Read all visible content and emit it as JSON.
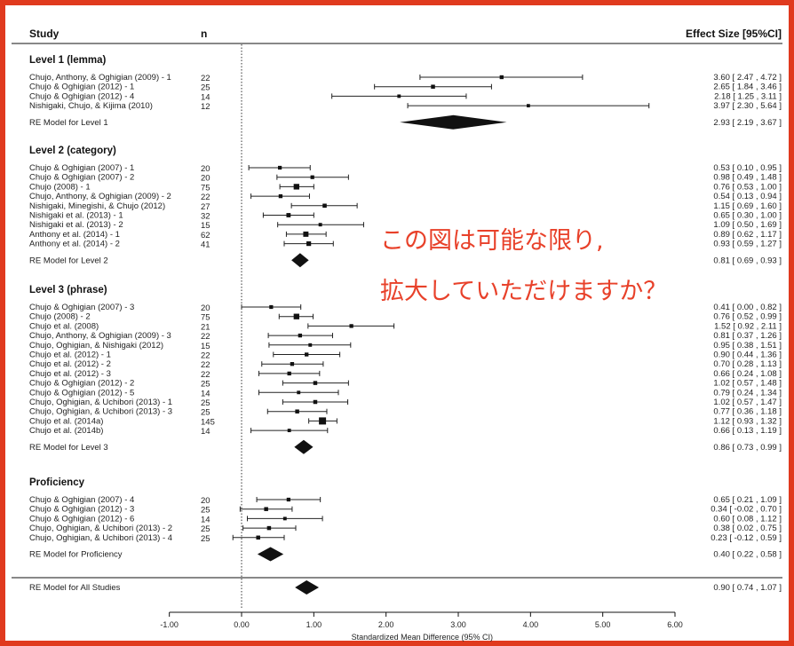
{
  "chart_data": {
    "type": "forest",
    "headers": {
      "study": "Study",
      "n": "n",
      "effect": "Effect Size [95%CI]"
    },
    "xlabel": "Standardized Mean Difference (95% CI)",
    "xlim": [
      -1,
      6
    ],
    "ticks": [
      "-1.00",
      "0.00",
      "1.00",
      "2.00",
      "3.00",
      "4.00",
      "5.00",
      "6.00"
    ],
    "tick_values": [
      -1,
      0,
      1,
      2,
      3,
      4,
      5,
      6
    ],
    "reference_line": 0,
    "groups": [
      {
        "title": "Level 1 (lemma)",
        "studies": [
          {
            "label": "Chujo, Anthony, & Oghigian (2009) - 1",
            "n": "22",
            "est": 3.6,
            "lo": 2.47,
            "hi": 4.72,
            "text": "3.60 [ 2.47 , 4.72 ]"
          },
          {
            "label": "Chujo & Oghigian (2012) - 1",
            "n": "25",
            "est": 2.65,
            "lo": 1.84,
            "hi": 3.46,
            "text": "2.65 [ 1.84 , 3.46 ]"
          },
          {
            "label": "Chujo & Oghigian (2012) - 4",
            "n": "14",
            "est": 2.18,
            "lo": 1.25,
            "hi": 3.11,
            "text": "2.18 [ 1.25 , 3.11 ]"
          },
          {
            "label": "Nishigaki, Chujo, & Kijima (2010)",
            "n": "12",
            "est": 3.97,
            "lo": 2.3,
            "hi": 5.64,
            "text": "3.97 [ 2.30 , 5.64 ]"
          }
        ],
        "summary": {
          "label": "RE Model for Level 1",
          "est": 2.93,
          "lo": 2.19,
          "hi": 3.67,
          "text": "2.93 [ 2.19 , 3.67 ]"
        }
      },
      {
        "title": "Level 2 (category)",
        "studies": [
          {
            "label": "Chujo & Oghigian (2007) - 1",
            "n": "20",
            "est": 0.53,
            "lo": 0.1,
            "hi": 0.95,
            "text": "0.53 [ 0.10 , 0.95 ]"
          },
          {
            "label": "Chujo & Oghigian (2007) - 2",
            "n": "20",
            "est": 0.98,
            "lo": 0.49,
            "hi": 1.48,
            "text": "0.98 [ 0.49 , 1.48 ]"
          },
          {
            "label": "Chujo (2008) - 1",
            "n": "75",
            "est": 0.76,
            "lo": 0.53,
            "hi": 1.0,
            "text": "0.76 [ 0.53 , 1.00 ]"
          },
          {
            "label": "Chujo, Anthony, & Oghigian (2009) - 2",
            "n": "22",
            "est": 0.54,
            "lo": 0.13,
            "hi": 0.94,
            "text": "0.54 [ 0.13 , 0.94 ]"
          },
          {
            "label": "Nishigaki, Minegishi, & Chujo (2012)",
            "n": "27",
            "est": 1.15,
            "lo": 0.69,
            "hi": 1.6,
            "text": "1.15 [ 0.69 , 1.60 ]"
          },
          {
            "label": "Nishigaki et al. (2013) - 1",
            "n": "32",
            "est": 0.65,
            "lo": 0.3,
            "hi": 1.0,
            "text": "0.65 [ 0.30 , 1.00 ]"
          },
          {
            "label": "Nishigaki et al. (2013) - 2",
            "n": "15",
            "est": 1.09,
            "lo": 0.5,
            "hi": 1.69,
            "text": "1.09 [ 0.50 , 1.69 ]"
          },
          {
            "label": "Anthony et al. (2014) - 1",
            "n": "62",
            "est": 0.89,
            "lo": 0.62,
            "hi": 1.17,
            "text": "0.89 [ 0.62 , 1.17 ]"
          },
          {
            "label": "Anthony et al. (2014) - 2",
            "n": "41",
            "est": 0.93,
            "lo": 0.59,
            "hi": 1.27,
            "text": "0.93 [ 0.59 , 1.27 ]"
          }
        ],
        "summary": {
          "label": "RE Model for Level 2",
          "est": 0.81,
          "lo": 0.69,
          "hi": 0.93,
          "text": "0.81 [ 0.69 , 0.93 ]"
        }
      },
      {
        "title": "Level 3 (phrase)",
        "studies": [
          {
            "label": "Chujo & Oghigian (2007) - 3",
            "n": "20",
            "est": 0.41,
            "lo": 0.0,
            "hi": 0.82,
            "text": "0.41 [ 0.00 , 0.82 ]"
          },
          {
            "label": "Chujo (2008) - 2",
            "n": "75",
            "est": 0.76,
            "lo": 0.52,
            "hi": 0.99,
            "text": "0.76 [ 0.52 , 0.99 ]"
          },
          {
            "label": "Chujo et al. (2008)",
            "n": "21",
            "est": 1.52,
            "lo": 0.92,
            "hi": 2.11,
            "text": "1.52 [ 0.92 , 2.11 ]"
          },
          {
            "label": "Chujo, Anthony, & Oghigian (2009) - 3",
            "n": "22",
            "est": 0.81,
            "lo": 0.37,
            "hi": 1.26,
            "text": "0.81 [ 0.37 , 1.26 ]"
          },
          {
            "label": "Chujo, Oghigian, & Nishigaki (2012)",
            "n": "15",
            "est": 0.95,
            "lo": 0.38,
            "hi": 1.51,
            "text": "0.95 [ 0.38 , 1.51 ]"
          },
          {
            "label": "Chujo et al. (2012) - 1",
            "n": "22",
            "est": 0.9,
            "lo": 0.44,
            "hi": 1.36,
            "text": "0.90 [ 0.44 , 1.36 ]"
          },
          {
            "label": "Chujo et al. (2012) - 2",
            "n": "22",
            "est": 0.7,
            "lo": 0.28,
            "hi": 1.13,
            "text": "0.70 [ 0.28 , 1.13 ]"
          },
          {
            "label": "Chujo et al. (2012) - 3",
            "n": "22",
            "est": 0.66,
            "lo": 0.24,
            "hi": 1.08,
            "text": "0.66 [ 0.24 , 1.08 ]"
          },
          {
            "label": "Chujo & Oghigian (2012) - 2",
            "n": "25",
            "est": 1.02,
            "lo": 0.57,
            "hi": 1.48,
            "text": "1.02 [ 0.57 , 1.48 ]"
          },
          {
            "label": "Chujo & Oghigian (2012) - 5",
            "n": "14",
            "est": 0.79,
            "lo": 0.24,
            "hi": 1.34,
            "text": "0.79 [ 0.24 , 1.34 ]"
          },
          {
            "label": "Chujo, Oghigian, & Uchibori (2013) - 1",
            "n": "25",
            "est": 1.02,
            "lo": 0.57,
            "hi": 1.47,
            "text": "1.02 [ 0.57 , 1.47 ]"
          },
          {
            "label": "Chujo, Oghigian, & Uchibori (2013) - 3",
            "n": "25",
            "est": 0.77,
            "lo": 0.36,
            "hi": 1.18,
            "text": "0.77 [ 0.36 , 1.18 ]"
          },
          {
            "label": "Chujo et al. (2014a)",
            "n": "145",
            "est": 1.12,
            "lo": 0.93,
            "hi": 1.32,
            "text": "1.12 [ 0.93 , 1.32 ]"
          },
          {
            "label": "Chujo et al. (2014b)",
            "n": "14",
            "est": 0.66,
            "lo": 0.13,
            "hi": 1.19,
            "text": "0.66 [ 0.13 , 1.19 ]"
          }
        ],
        "summary": {
          "label": "RE Model for Level  3",
          "est": 0.86,
          "lo": 0.73,
          "hi": 0.99,
          "text": "0.86 [ 0.73 , 0.99 ]"
        }
      },
      {
        "title": "Proficiency",
        "studies": [
          {
            "label": "Chujo & Oghigian (2007) - 4",
            "n": "20",
            "est": 0.65,
            "lo": 0.21,
            "hi": 1.09,
            "text": "0.65 [ 0.21 , 1.09 ]"
          },
          {
            "label": "Chujo & Oghigian (2012) - 3",
            "n": "25",
            "est": 0.34,
            "lo": -0.02,
            "hi": 0.7,
            "text": "0.34 [ -0.02 , 0.70 ]"
          },
          {
            "label": "Chujo & Oghigian (2012) - 6",
            "n": "14",
            "est": 0.6,
            "lo": 0.08,
            "hi": 1.12,
            "text": "0.60 [ 0.08 , 1.12 ]"
          },
          {
            "label": "Chujo, Oghigian, & Uchibori (2013) - 2",
            "n": "25",
            "est": 0.38,
            "lo": 0.02,
            "hi": 0.75,
            "text": "0.38 [ 0.02 , 0.75 ]"
          },
          {
            "label": "Chujo, Oghigian, & Uchibori (2013) - 4",
            "n": "25",
            "est": 0.23,
            "lo": -0.12,
            "hi": 0.59,
            "text": "0.23 [ -0.12 , 0.59 ]"
          }
        ],
        "summary": {
          "label": "RE Model for Proficiency",
          "est": 0.4,
          "lo": 0.22,
          "hi": 0.58,
          "text": "0.40 [ 0.22 , 0.58 ]"
        }
      }
    ],
    "overall": {
      "label": "RE Model for All Studies",
      "est": 0.9,
      "lo": 0.74,
      "hi": 1.07,
      "text": "0.90 [ 0.74 , 1.07 ]"
    }
  },
  "annotation": {
    "line1": "この図は可能な限り,",
    "line2": "拡大していただけますか？"
  },
  "colors": {
    "frame": "#e03a1e",
    "annotation": "#e8412a",
    "ink": "#111111"
  }
}
